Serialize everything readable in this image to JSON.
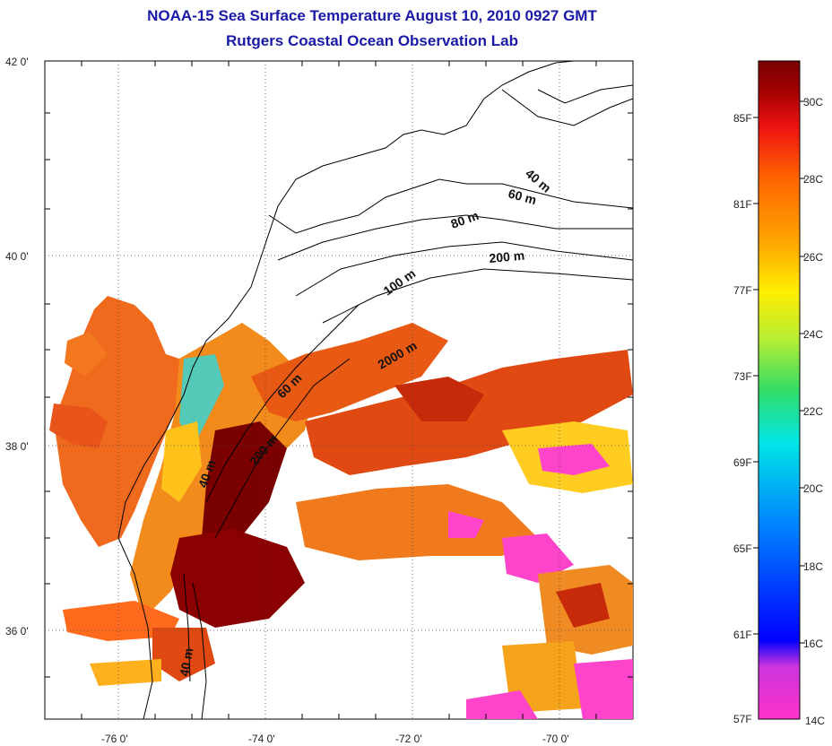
{
  "title": {
    "line1": "NOAA-15 Sea Surface Temperature August 10, 2010 0927 GMT",
    "line2": "Rutgers Coastal Ocean Observation Lab"
  },
  "map": {
    "lat_ticks": [
      "42 0'",
      "40 0'",
      "38 0'",
      "36 0'"
    ],
    "lon_ticks": [
      "-76 0'",
      "-74 0'",
      "-72 0'",
      "-70 0'"
    ],
    "lat_range": [
      35,
      42
    ],
    "lon_range": [
      -77,
      -69
    ],
    "grid": true,
    "contour_labels": [
      "40 m",
      "60 m",
      "80 m",
      "200 m",
      "100 m",
      "2000 m",
      "60 m",
      "200 m",
      "40 m",
      "40 m"
    ]
  },
  "colorbar": {
    "fahrenheit_labels": [
      "85F",
      "81F",
      "77F",
      "73F",
      "69F",
      "65F",
      "61F",
      "57F"
    ],
    "celsius_labels": [
      "30C",
      "28C",
      "26C",
      "24C",
      "22C",
      "20C",
      "18C",
      "16C",
      "14C"
    ],
    "colors": [
      "#ff33cc",
      "#8833cc",
      "#0000ff",
      "#0088ff",
      "#00e6e6",
      "#33dd66",
      "#bbee33",
      "#ffee00",
      "#ffaa00",
      "#ff6600",
      "#ee1111",
      "#9b0000",
      "#7a0000"
    ]
  }
}
